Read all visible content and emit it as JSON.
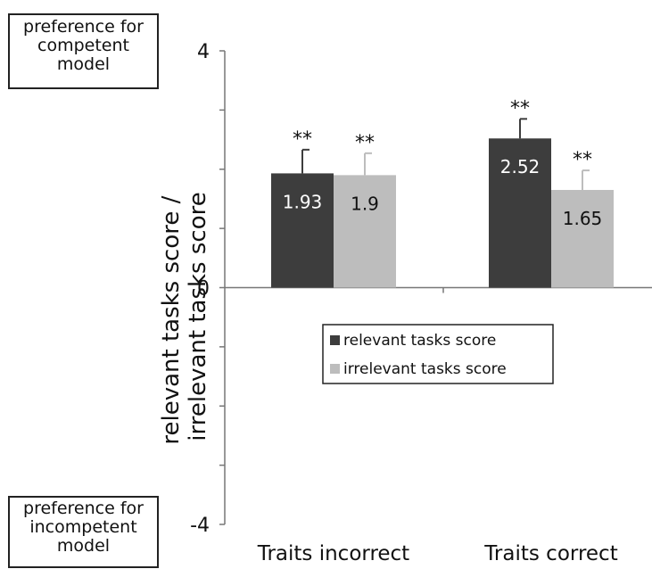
{
  "annotations": {
    "top": [
      "preference for",
      "competent",
      "model"
    ],
    "bottom": [
      "preference for",
      "incompetent",
      "model"
    ]
  },
  "colors": {
    "relevant": "#3d3d3d",
    "irrelevant": "#bdbdbd",
    "axis": "#777777"
  },
  "chart_data": {
    "type": "bar",
    "categories": [
      "Traits incorrect",
      "Traits correct"
    ],
    "ylabel_lines": [
      "relevant tasks score /",
      "irrelevant tasks score"
    ],
    "ylim": [
      -4,
      4
    ],
    "yticks_labeled": [
      4,
      0,
      -4
    ],
    "minor_tick_step": 1,
    "grid": false,
    "legend_position": "center (below zero line)",
    "series": [
      {
        "name": "relevant tasks score",
        "values": [
          1.93,
          2.52
        ],
        "errors": [
          0.4,
          0.33
        ],
        "labels": [
          "1.93",
          "2.52"
        ],
        "significance": [
          "**",
          "**"
        ]
      },
      {
        "name": "irrelevant tasks score",
        "values": [
          1.9,
          1.65
        ],
        "errors": [
          0.37,
          0.33
        ],
        "labels": [
          "1.9",
          "1.65"
        ],
        "significance": [
          "**",
          "**"
        ]
      }
    ]
  }
}
